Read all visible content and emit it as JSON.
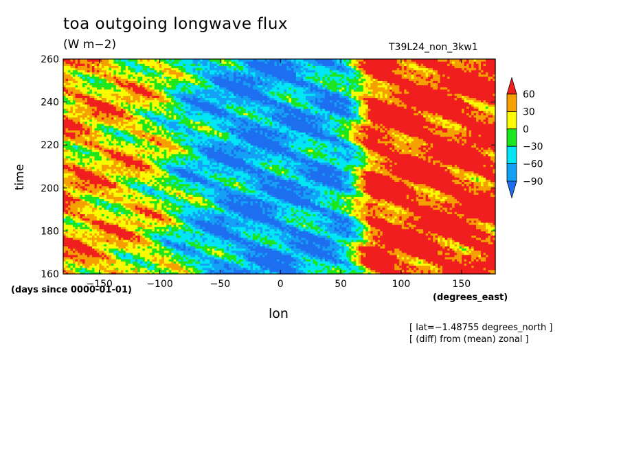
{
  "chart_data": {
    "type": "heatmap",
    "title": "toa outgoing longwave flux",
    "units": "(W m−2)",
    "experiment": "T39L24_non_3kw1",
    "xlabel": "lon",
    "ylabel": "time",
    "x_units_label": "(degrees_east)",
    "y_units_label": "(days since 0000-01-01)",
    "xlim": [
      -180,
      178
    ],
    "ylim": [
      160,
      260
    ],
    "x_ticks": [
      -150,
      -100,
      -50,
      0,
      50,
      100,
      150
    ],
    "y_ticks": [
      160,
      180,
      200,
      220,
      240,
      260
    ],
    "annotations": [
      "[ lat=−1.48755 degrees_north ]",
      "[ (diff) from (mean) zonal ]"
    ],
    "colorbar": {
      "levels": [
        -90,
        -60,
        -30,
        0,
        30,
        60
      ],
      "level_labels": [
        "−90",
        "−60",
        "−30",
        "0",
        "30",
        "60"
      ],
      "colors": [
        "#1e6ff0",
        "#14a0f5",
        "#00e6f5",
        "#1ee61e",
        "#fafa00",
        "#f5a000",
        "#f01e1e"
      ],
      "extend": "both"
    },
    "zonal_pattern": {
      "lon": [
        -180,
        -150,
        -120,
        -100,
        -80,
        -50,
        -20,
        0,
        20,
        40,
        55,
        65,
        75,
        100,
        150,
        178
      ],
      "mean_anomaly": [
        40,
        30,
        20,
        0,
        -40,
        -70,
        -80,
        -75,
        -70,
        -70,
        -50,
        10,
        75,
        80,
        80,
        75
      ]
    }
  }
}
